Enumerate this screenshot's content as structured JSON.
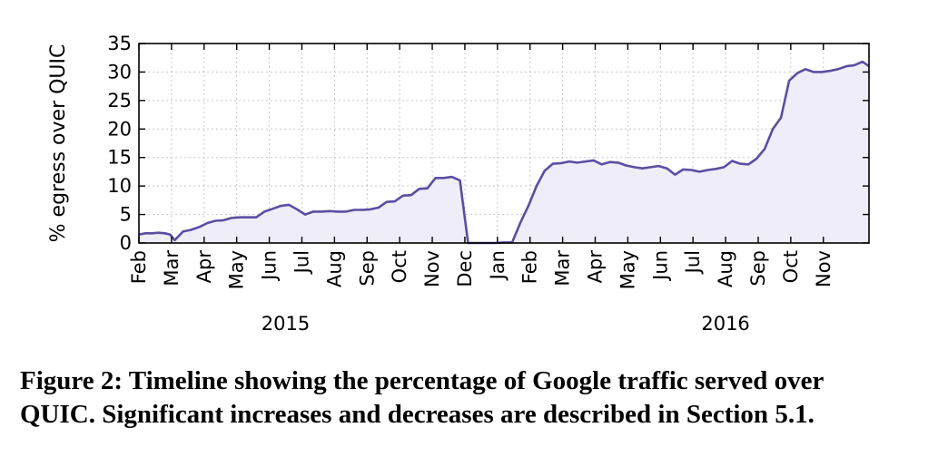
{
  "chart_data": {
    "type": "area",
    "ylabel": "% egress over QUIC",
    "ylim": [
      0,
      35
    ],
    "yticks": [
      0,
      5,
      10,
      15,
      20,
      25,
      30,
      35
    ],
    "xlim": [
      0,
      22.4
    ],
    "month_ticks": [
      "Feb",
      "Mar",
      "Apr",
      "May",
      "Jun",
      "Jul",
      "Aug",
      "Sep",
      "Oct",
      "Nov",
      "Dec",
      "Jan",
      "Feb",
      "Mar",
      "Apr",
      "May",
      "Jun",
      "Jul",
      "Aug",
      "Sep",
      "Oct",
      "Nov"
    ],
    "years": [
      {
        "label": "2015",
        "month_index": 4.5
      },
      {
        "label": "2016",
        "month_index": 18
      }
    ],
    "grid": true,
    "line_color": "#5b4ea2",
    "fill_color": "#efedf8",
    "series": [
      {
        "x": [
          0,
          0.2,
          0.4,
          0.6,
          0.8,
          0.95,
          1.1,
          1.35,
          1.6,
          1.85,
          2.1,
          2.35,
          2.6,
          2.85,
          3.1,
          3.35,
          3.6,
          3.85,
          4.1,
          4.35,
          4.6,
          4.85,
          5.1,
          5.35,
          5.6,
          5.85,
          6.1,
          6.35,
          6.6,
          6.85,
          7.1,
          7.35,
          7.6,
          7.85,
          8.1,
          8.35,
          8.6,
          8.85,
          9.1,
          9.35,
          9.6,
          9.85,
          10.1,
          10.35,
          10.45,
          10.7,
          10.95,
          11.2,
          11.45,
          11.7,
          11.95,
          12.2,
          12.45,
          12.7,
          12.95,
          13.2,
          13.45,
          13.7,
          13.95,
          14.2,
          14.45,
          14.7,
          14.95,
          15.2,
          15.45,
          15.7,
          15.95,
          16.2,
          16.45,
          16.7,
          16.95,
          17.2,
          17.45,
          17.7,
          17.95,
          18.2,
          18.45,
          18.7,
          18.95,
          19.2,
          19.45,
          19.7,
          19.95,
          20.2,
          20.45,
          20.7,
          20.95,
          21.2,
          21.45,
          21.7,
          21.95,
          22.2,
          22.4
        ],
        "y": [
          1.5,
          1.7,
          1.7,
          1.8,
          1.7,
          1.5,
          0.5,
          2.0,
          2.3,
          2.8,
          3.5,
          3.9,
          4.0,
          4.4,
          4.5,
          4.5,
          4.5,
          5.5,
          6.0,
          6.5,
          6.7,
          5.9,
          5.0,
          5.5,
          5.5,
          5.6,
          5.5,
          5.5,
          5.8,
          5.8,
          5.9,
          6.2,
          7.2,
          7.3,
          8.3,
          8.4,
          9.5,
          9.6,
          11.4,
          11.4,
          11.6,
          11.0,
          0.0,
          0.0,
          0.0,
          0.0,
          0.0,
          0.1,
          0.1,
          3.5,
          6.5,
          10.0,
          12.7,
          13.9,
          14.0,
          14.3,
          14.1,
          14.3,
          14.5,
          13.8,
          14.2,
          14.1,
          13.6,
          13.3,
          13.1,
          13.3,
          13.5,
          13.1,
          12.0,
          12.9,
          12.8,
          12.5,
          12.8,
          13.0,
          13.3,
          14.4,
          13.9,
          13.8,
          14.8,
          16.5,
          20.0,
          22.0,
          28.5,
          29.8,
          30.5,
          30.0,
          30.0,
          30.2,
          30.5,
          31.0,
          31.2,
          31.8,
          31.0
        ]
      }
    ]
  },
  "caption": {
    "line1": "Figure 2: Timeline showing the percentage of Google traffic served over",
    "line2": "QUIC. Significant increases and decreases are described in Section 5.1."
  }
}
